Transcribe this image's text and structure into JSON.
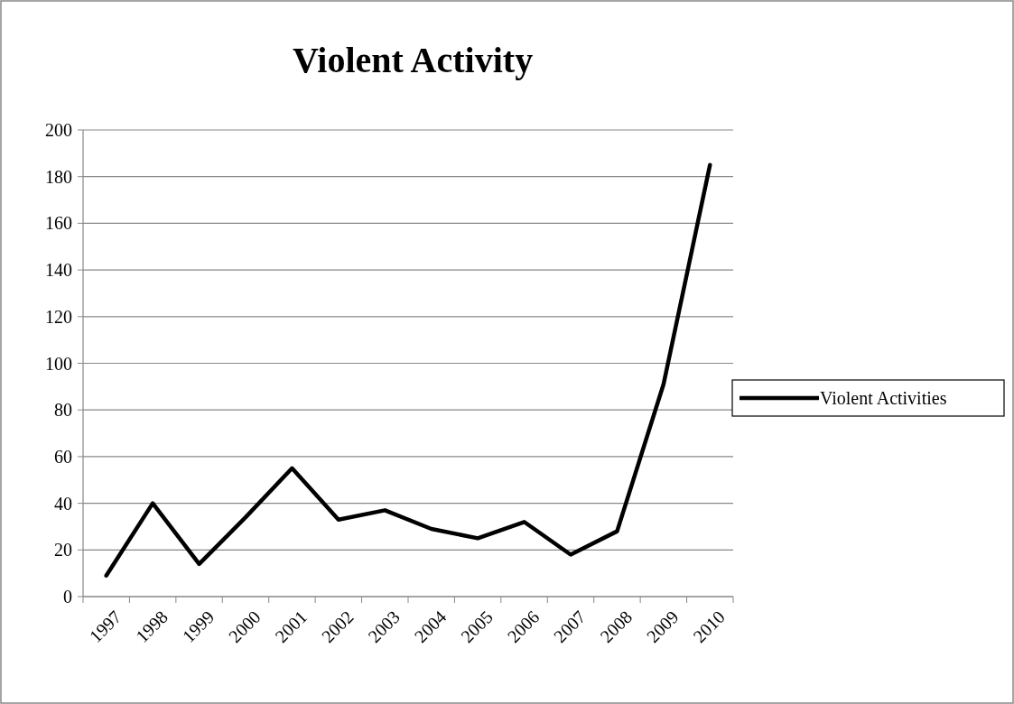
{
  "chart_data": {
    "type": "line",
    "title": "Violent Activity",
    "categories": [
      "1997",
      "1998",
      "1999",
      "2000",
      "2001",
      "2002",
      "2003",
      "2004",
      "2005",
      "2006",
      "2007",
      "2008",
      "2009",
      "2010"
    ],
    "series": [
      {
        "name": "Violent Activities",
        "color": "#000000",
        "values": [
          9,
          40,
          14,
          34,
          55,
          33,
          37,
          29,
          25,
          32,
          18,
          28,
          91,
          185
        ]
      }
    ],
    "ylim": [
      0,
      200
    ],
    "yticks": [
      0,
      20,
      40,
      60,
      80,
      100,
      120,
      140,
      160,
      180,
      200
    ],
    "grid": "y",
    "legend": "right",
    "marker": "none",
    "line_style": "solid"
  }
}
